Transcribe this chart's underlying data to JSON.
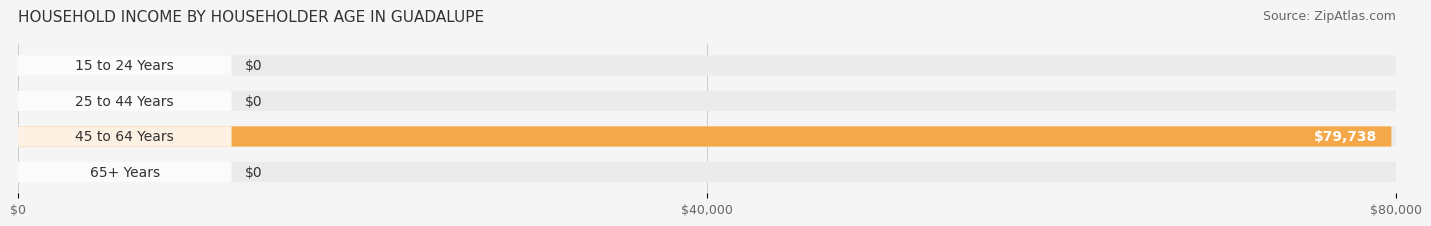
{
  "title": "HOUSEHOLD INCOME BY HOUSEHOLDER AGE IN GUADALUPE",
  "source": "Source: ZipAtlas.com",
  "categories": [
    "15 to 24 Years",
    "25 to 44 Years",
    "45 to 64 Years",
    "65+ Years"
  ],
  "values": [
    0,
    0,
    79738,
    0
  ],
  "bar_colors": [
    "#a0a8d8",
    "#f06090",
    "#f5a84a",
    "#f09090"
  ],
  "label_bg_colors": [
    "#d8dcf0",
    "#f8c0d0",
    "#f5a84a",
    "#f0c0c0"
  ],
  "bar_labels": [
    "$0",
    "$0",
    "$79,738",
    "$0"
  ],
  "xlim": [
    0,
    80000
  ],
  "xtick_values": [
    0,
    40000,
    80000
  ],
  "xtick_labels": [
    "$0",
    "$40,000",
    "$80,000"
  ],
  "background_color": "#f5f5f5",
  "bar_bg_color": "#ebebeb",
  "title_fontsize": 11,
  "source_fontsize": 9,
  "label_fontsize": 10,
  "bar_height": 0.55,
  "bar_label_inside_color": "#ffffff",
  "bar_label_outside_color": "#333333"
}
